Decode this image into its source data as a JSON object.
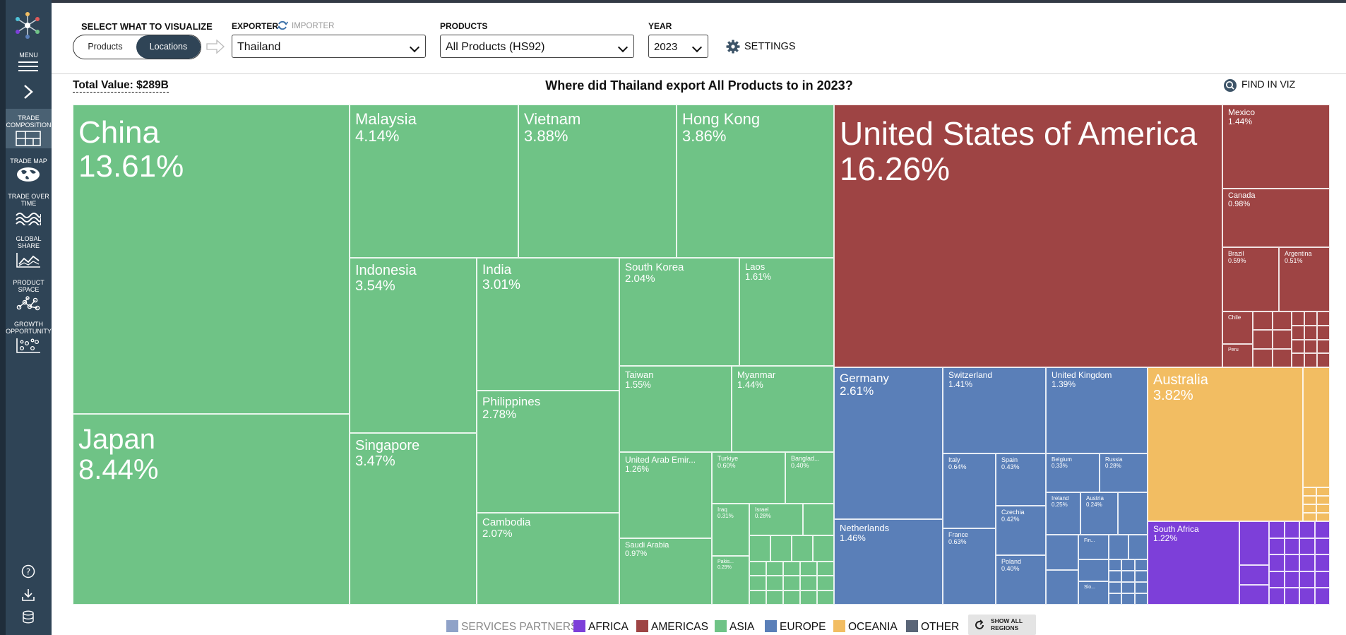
{
  "sidebar": {
    "menu_label": "MENU",
    "items": [
      {
        "label": "TRADE COMPOSITION",
        "icon": "treemap-icon",
        "active": true
      },
      {
        "label": "TRADE MAP",
        "icon": "globe-icon",
        "active": false
      },
      {
        "label": "TRADE OVER TIME",
        "icon": "area-waves-icon",
        "active": false
      },
      {
        "label": "GLOBAL SHARE",
        "icon": "line-chart-icon",
        "active": false
      },
      {
        "label": "PRODUCT SPACE",
        "icon": "network-icon",
        "active": false
      },
      {
        "label": "GROWTH OPPORTUNITY",
        "icon": "scatter-grid-icon",
        "active": false
      }
    ]
  },
  "header": {
    "visualize_label": "SELECT WHAT TO VISUALIZE",
    "toggle_products": "Products",
    "toggle_locations": "Locations",
    "exporter_label": "EXPORTER",
    "importer_label": "IMPORTER",
    "exporter_value": "Thailand",
    "products_label": "PRODUCTS",
    "products_value": "All Products (HS92)",
    "year_label": "YEAR",
    "year_value": "2023",
    "settings_label": "SETTINGS"
  },
  "viz": {
    "total_value": "Total Value: $289B",
    "title": "Where did Thailand export All Products to in 2023?",
    "find_label": "FIND IN VIZ"
  },
  "colors": {
    "asia": "#6fc386",
    "americas": "#9e4444",
    "europe": "#5a7fb8",
    "oceania": "#f2bd62",
    "africa": "#7d3fd9",
    "other": "#5a6577",
    "services": "#8fa2c8"
  },
  "treemap": [
    {
      "name": "China",
      "share": "13.61%",
      "region": "asia"
    },
    {
      "name": "Japan",
      "share": "8.44%",
      "region": "asia"
    },
    {
      "name": "Malaysia",
      "share": "4.14%",
      "region": "asia"
    },
    {
      "name": "Vietnam",
      "share": "3.88%",
      "region": "asia"
    },
    {
      "name": "Hong Kong",
      "share": "3.86%",
      "region": "asia"
    },
    {
      "name": "Indonesia",
      "share": "3.54%",
      "region": "asia"
    },
    {
      "name": "Singapore",
      "share": "3.47%",
      "region": "asia"
    },
    {
      "name": "India",
      "share": "3.01%",
      "region": "asia"
    },
    {
      "name": "Philippines",
      "share": "2.78%",
      "region": "asia"
    },
    {
      "name": "Cambodia",
      "share": "2.07%",
      "region": "asia"
    },
    {
      "name": "South Korea",
      "share": "2.04%",
      "region": "asia"
    },
    {
      "name": "Laos",
      "share": "1.61%",
      "region": "asia"
    },
    {
      "name": "Taiwan",
      "share": "1.55%",
      "region": "asia"
    },
    {
      "name": "Myanmar",
      "share": "1.44%",
      "region": "asia"
    },
    {
      "name": "United Arab Emir...",
      "share": "1.26%",
      "region": "asia"
    },
    {
      "name": "Turkiye",
      "share": "0.60%",
      "region": "asia"
    },
    {
      "name": "Banglad...",
      "share": "0.40%",
      "region": "asia"
    },
    {
      "name": "Iraq",
      "share": "0.31%",
      "region": "asia"
    },
    {
      "name": "Israel",
      "share": "0.28%",
      "region": "asia"
    },
    {
      "name": "Saudi Arabia",
      "share": "0.97%",
      "region": "asia"
    },
    {
      "name": "Pakis...",
      "share": "0.29%",
      "region": "asia"
    },
    {
      "name": "United States of America",
      "share": "16.26%",
      "region": "americas"
    },
    {
      "name": "Mexico",
      "share": "1.44%",
      "region": "americas"
    },
    {
      "name": "Canada",
      "share": "0.98%",
      "region": "americas"
    },
    {
      "name": "Brazil",
      "share": "0.59%",
      "region": "americas"
    },
    {
      "name": "Argentina",
      "share": "0.51%",
      "region": "americas"
    },
    {
      "name": "Chile",
      "share": "",
      "region": "americas"
    },
    {
      "name": "Peru",
      "share": "",
      "region": "americas"
    },
    {
      "name": "Germany",
      "share": "2.61%",
      "region": "europe"
    },
    {
      "name": "Switzerland",
      "share": "1.41%",
      "region": "europe"
    },
    {
      "name": "United Kingdom",
      "share": "1.39%",
      "region": "europe"
    },
    {
      "name": "Netherlands",
      "share": "1.46%",
      "region": "europe"
    },
    {
      "name": "Italy",
      "share": "0.64%",
      "region": "europe"
    },
    {
      "name": "Spain",
      "share": "0.43%",
      "region": "europe"
    },
    {
      "name": "Belgium",
      "share": "0.33%",
      "region": "europe"
    },
    {
      "name": "Russia",
      "share": "0.28%",
      "region": "europe"
    },
    {
      "name": "Czechia",
      "share": "0.42%",
      "region": "europe"
    },
    {
      "name": "Ireland",
      "share": "0.25%",
      "region": "europe"
    },
    {
      "name": "Austria",
      "share": "0.24%",
      "region": "europe"
    },
    {
      "name": "France",
      "share": "0.63%",
      "region": "europe"
    },
    {
      "name": "Poland",
      "share": "0.40%",
      "region": "europe"
    },
    {
      "name": "Fin...",
      "share": "",
      "region": "europe"
    },
    {
      "name": "Slo...",
      "share": "",
      "region": "europe"
    },
    {
      "name": "Australia",
      "share": "3.82%",
      "region": "oceania"
    },
    {
      "name": "South Africa",
      "share": "1.22%",
      "region": "africa"
    }
  ],
  "legend": [
    {
      "label": "SERVICES PARTNERS",
      "key": "services"
    },
    {
      "label": "AFRICA",
      "key": "africa"
    },
    {
      "label": "AMERICAS",
      "key": "americas"
    },
    {
      "label": "ASIA",
      "key": "asia"
    },
    {
      "label": "EUROPE",
      "key": "europe"
    },
    {
      "label": "OCEANIA",
      "key": "oceania"
    },
    {
      "label": "OTHER",
      "key": "other"
    }
  ],
  "show_all_label": "SHOW ALL REGIONS"
}
